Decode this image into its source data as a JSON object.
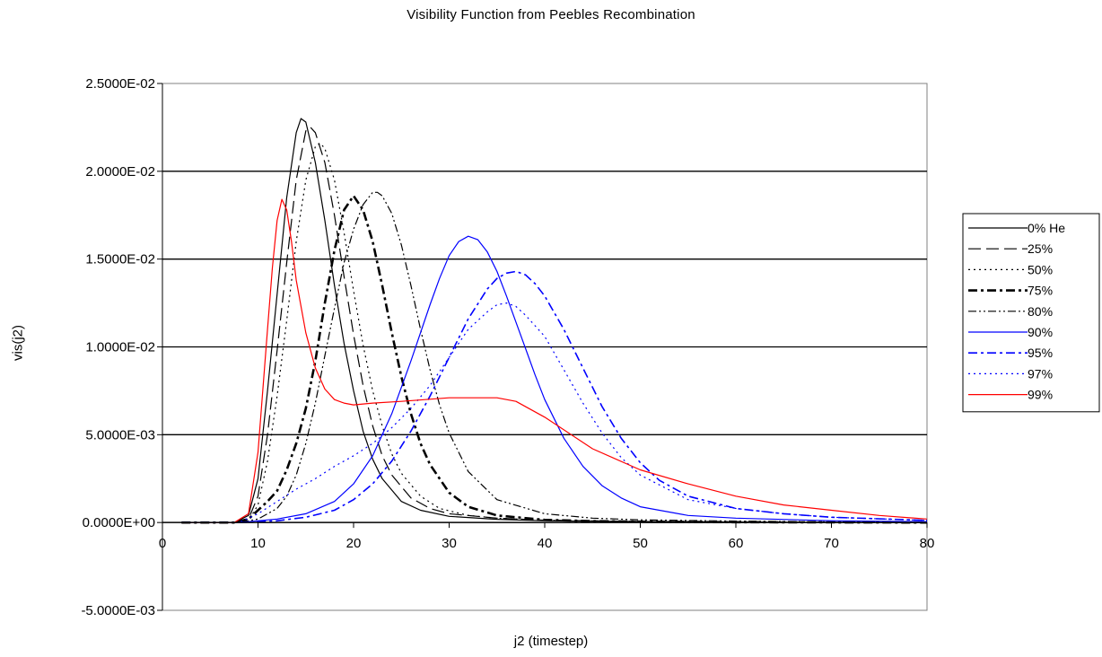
{
  "chart_data": {
    "type": "line",
    "title": "Visibility Function from Peebles Recombination",
    "xlabel": "j2 (timestep)",
    "ylabel": "vis(j2)",
    "xlim": [
      0,
      80
    ],
    "ylim": [
      -0.005,
      0.025
    ],
    "x_ticks": [
      0,
      10,
      20,
      30,
      40,
      50,
      60,
      70,
      80
    ],
    "x_tick_labels": [
      "0",
      "10",
      "20",
      "30",
      "40",
      "50",
      "60",
      "70",
      "80"
    ],
    "y_ticks": [
      -0.005,
      0,
      0.005,
      0.01,
      0.015,
      0.02,
      0.025
    ],
    "y_tick_labels": [
      "-5.0000E-03",
      "0.0000E+00",
      "5.0000E-03",
      "1.0000E-02",
      "1.5000E-02",
      "2.0000E-02",
      "2.5000E-02"
    ],
    "grid": "horizontal major gridlines",
    "legend_position": "right",
    "series": [
      {
        "name": "0% He",
        "color": "#000000",
        "dash": "solid",
        "x": [
          2,
          7.5,
          9,
          10,
          11,
          12,
          13,
          14,
          14.5,
          15,
          16,
          17,
          18,
          19,
          20,
          21,
          22,
          23,
          25,
          27,
          30,
          35,
          40,
          50,
          60,
          70,
          80
        ],
        "y": [
          0,
          0,
          0.0004,
          0.0025,
          0.0075,
          0.013,
          0.0185,
          0.0222,
          0.023,
          0.0228,
          0.0205,
          0.0172,
          0.0135,
          0.0102,
          0.0075,
          0.0052,
          0.0036,
          0.0025,
          0.0012,
          0.0007,
          0.00035,
          0.00018,
          0.0001,
          5e-05,
          2e-05,
          1e-05,
          0
        ]
      },
      {
        "name": "25%",
        "color": "#000000",
        "dash": "long-dash",
        "x": [
          2,
          7.5,
          9,
          10,
          11,
          12,
          13,
          14,
          15,
          15.5,
          16,
          17,
          18,
          19,
          20,
          21,
          22,
          23,
          24,
          26,
          28,
          30,
          35,
          40,
          50,
          60,
          70,
          80
        ],
        "y": [
          0,
          0,
          0.0002,
          0.0015,
          0.005,
          0.0098,
          0.0148,
          0.0195,
          0.0223,
          0.0225,
          0.0222,
          0.0205,
          0.0175,
          0.014,
          0.0107,
          0.0078,
          0.0055,
          0.0038,
          0.0027,
          0.0014,
          0.0008,
          0.0005,
          0.00025,
          0.00013,
          6e-05,
          3e-05,
          1e-05,
          0
        ]
      },
      {
        "name": "50%",
        "color": "#000000",
        "dash": "dotted",
        "x": [
          2,
          7.5,
          9,
          10,
          11,
          12,
          13,
          14,
          15,
          16,
          16.5,
          17,
          18,
          19,
          20,
          21,
          22,
          23,
          24,
          25,
          27,
          29,
          32,
          35,
          40,
          50,
          60,
          70,
          80
        ],
        "y": [
          0,
          0,
          0.0001,
          0.001,
          0.0035,
          0.0072,
          0.0115,
          0.016,
          0.0195,
          0.0214,
          0.0216,
          0.0213,
          0.0195,
          0.0165,
          0.0132,
          0.0101,
          0.0075,
          0.0055,
          0.0039,
          0.0028,
          0.0015,
          0.0008,
          0.0004,
          0.00025,
          0.00013,
          6e-05,
          3e-05,
          1e-05,
          0
        ]
      },
      {
        "name": "75%",
        "color": "#000000",
        "dash": "bold-dash-dot",
        "x": [
          2,
          7.5,
          9,
          10,
          11,
          12,
          13,
          14,
          15,
          16,
          17,
          18,
          19,
          20,
          21,
          22,
          23,
          24,
          25,
          26,
          27,
          28,
          30,
          32,
          35,
          40,
          45,
          50,
          60,
          70,
          80
        ],
        "y": [
          0,
          0,
          0.0002,
          0.0007,
          0.0012,
          0.0018,
          0.003,
          0.0045,
          0.0065,
          0.0092,
          0.0125,
          0.0155,
          0.0178,
          0.0186,
          0.0178,
          0.016,
          0.0135,
          0.0108,
          0.0083,
          0.0062,
          0.0045,
          0.0033,
          0.0017,
          0.0009,
          0.0004,
          0.00015,
          8e-05,
          5e-05,
          2e-05,
          1e-05,
          0
        ]
      },
      {
        "name": "80%",
        "color": "#000000",
        "dash": "dash-dot-dot",
        "x": [
          2,
          8,
          10,
          12,
          13,
          14,
          15,
          16,
          17,
          18,
          19,
          20,
          21,
          22,
          22.5,
          23,
          24,
          25,
          26,
          27,
          28,
          29,
          30,
          32,
          35,
          40,
          45,
          50,
          60,
          70,
          80
        ],
        "y": [
          0,
          0,
          0.0002,
          0.0008,
          0.0015,
          0.0027,
          0.0045,
          0.0068,
          0.0095,
          0.0122,
          0.0148,
          0.0167,
          0.0181,
          0.0188,
          0.0188,
          0.0186,
          0.0176,
          0.0158,
          0.0135,
          0.011,
          0.0087,
          0.0067,
          0.0051,
          0.0029,
          0.0013,
          0.0005,
          0.00025,
          0.00015,
          8e-05,
          4e-05,
          0
        ]
      },
      {
        "name": "90%",
        "color": "#0000ff",
        "dash": "solid",
        "x": [
          2,
          8,
          12,
          15,
          18,
          20,
          22,
          24,
          26,
          28,
          29,
          30,
          31,
          32,
          33,
          34,
          35,
          36,
          37,
          38,
          39,
          40,
          42,
          44,
          46,
          48,
          50,
          55,
          60,
          70,
          80
        ],
        "y": [
          0,
          0,
          0.0002,
          0.0005,
          0.0012,
          0.0022,
          0.0038,
          0.0062,
          0.0092,
          0.0124,
          0.0139,
          0.0152,
          0.016,
          0.0163,
          0.0161,
          0.0154,
          0.0143,
          0.0129,
          0.0114,
          0.0099,
          0.0084,
          0.007,
          0.0048,
          0.0032,
          0.0021,
          0.0014,
          0.0009,
          0.0004,
          0.00025,
          0.0001,
          5e-05
        ]
      },
      {
        "name": "95%",
        "color": "#0000ff",
        "dash": "dash-dot",
        "x": [
          2,
          8,
          12,
          15,
          18,
          20,
          22,
          24,
          26,
          28,
          30,
          32,
          34,
          35,
          36,
          37,
          38,
          39,
          40,
          42,
          44,
          46,
          48,
          50,
          52,
          55,
          60,
          65,
          70,
          80
        ],
        "y": [
          0,
          0,
          0.0001,
          0.0003,
          0.0007,
          0.0013,
          0.0022,
          0.0035,
          0.0052,
          0.0072,
          0.0094,
          0.0116,
          0.0133,
          0.0139,
          0.0142,
          0.0143,
          0.0141,
          0.0136,
          0.0129,
          0.011,
          0.0088,
          0.0066,
          0.0048,
          0.0034,
          0.0024,
          0.0015,
          0.0008,
          0.0005,
          0.0003,
          0.00012
        ]
      },
      {
        "name": "97%",
        "color": "#0000ff",
        "dash": "dotted",
        "x": [
          2,
          8,
          10,
          12,
          14,
          16,
          18,
          20,
          22,
          24,
          26,
          28,
          30,
          32,
          34,
          35,
          36,
          37,
          38,
          40,
          42,
          44,
          46,
          48,
          50,
          55,
          60,
          65,
          70,
          80
        ],
        "y": [
          0,
          0,
          0.0005,
          0.0012,
          0.0019,
          0.0025,
          0.0032,
          0.0038,
          0.0045,
          0.0054,
          0.0065,
          0.0078,
          0.0094,
          0.011,
          0.012,
          0.0124,
          0.0125,
          0.0123,
          0.0118,
          0.0106,
          0.0087,
          0.0068,
          0.0051,
          0.0037,
          0.0027,
          0.0013,
          0.0008,
          0.0005,
          0.0003,
          0.00012
        ]
      },
      {
        "name": "99%",
        "color": "#ff0000",
        "dash": "solid",
        "x": [
          2,
          7.5,
          9,
          10,
          11,
          11.5,
          12,
          12.5,
          13,
          13.5,
          14,
          15,
          16,
          17,
          18,
          19,
          20,
          22,
          25,
          30,
          35,
          37,
          40,
          45,
          50,
          55,
          60,
          65,
          70,
          75,
          80
        ],
        "y": [
          0,
          0,
          0.0005,
          0.004,
          0.011,
          0.0145,
          0.0172,
          0.0184,
          0.0178,
          0.016,
          0.0138,
          0.0108,
          0.0088,
          0.0076,
          0.007,
          0.0068,
          0.0067,
          0.0068,
          0.0069,
          0.0071,
          0.0071,
          0.0069,
          0.006,
          0.0042,
          0.003,
          0.0022,
          0.0015,
          0.001,
          0.0007,
          0.0004,
          0.0002
        ]
      }
    ]
  }
}
